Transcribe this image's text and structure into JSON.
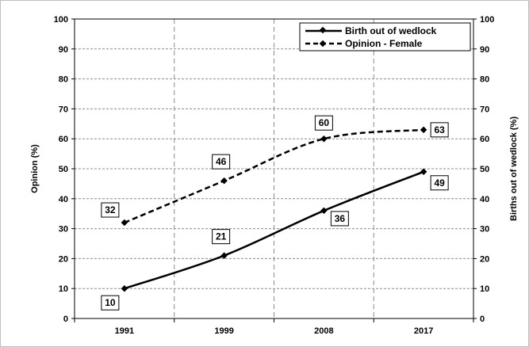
{
  "chart_data": {
    "type": "line",
    "categories": [
      "1991",
      "1999",
      "2008",
      "2017"
    ],
    "series": [
      {
        "name": "Birth out of wedlock",
        "values": [
          10,
          21,
          36,
          49
        ],
        "style": "solid",
        "color": "#000000"
      },
      {
        "name": "Opinion - Female",
        "values": [
          32,
          46,
          60,
          63
        ],
        "style": "dashed",
        "color": "#000000"
      }
    ],
    "ylabel": "Opinion (%)",
    "y2label": "Births out of wedlock (%)",
    "ylim": [
      0,
      100
    ],
    "y2lim": [
      0,
      100
    ],
    "yticks": [
      "0",
      "10",
      "20",
      "30",
      "40",
      "50",
      "60",
      "70",
      "80",
      "90",
      "100"
    ],
    "grid": true,
    "legend": "top-right"
  }
}
